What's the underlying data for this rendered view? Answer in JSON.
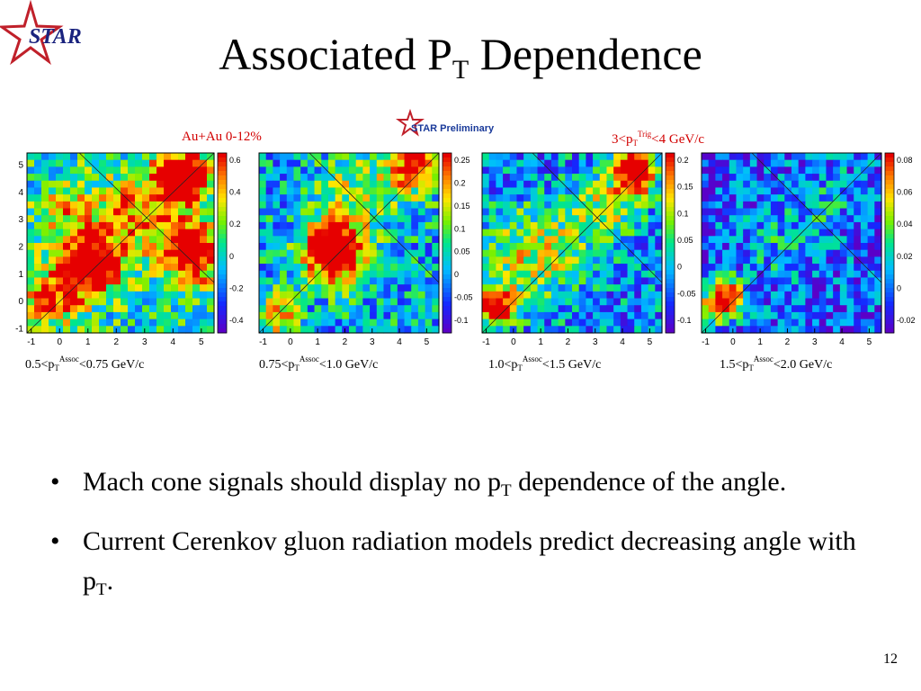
{
  "logo_text": "STAR",
  "title": {
    "main": "Associated P",
    "sub": "T",
    "rest": " Dependence"
  },
  "badge_text": "STAR Preliminary",
  "caption_left": "Au+Au 0-12%",
  "caption_right": {
    "a": "3<p",
    "sub": "T",
    "sup": "Trig",
    "b": "<4 GeV/c"
  },
  "chart_data": [
    {
      "type": "heatmap",
      "x_ticks": [
        "-1",
        "0",
        "1",
        "2",
        "3",
        "4",
        "5"
      ],
      "y_ticks": [
        "-1",
        "0",
        "1",
        "2",
        "3",
        "4",
        "5"
      ],
      "color_ticks": [
        "0.6",
        "0.4",
        "0.2",
        "0",
        "-0.2",
        "-0.4"
      ],
      "label": {
        "a": "0.5<p",
        "sub": "T",
        "sup": "Assoc",
        "b": "<0.75 GeV/c"
      }
    },
    {
      "type": "heatmap",
      "x_ticks": [
        "-1",
        "0",
        "1",
        "2",
        "3",
        "4",
        "5"
      ],
      "y_ticks": [],
      "color_ticks": [
        "0.25",
        "0.2",
        "0.15",
        "0.1",
        "0.05",
        "0",
        "-0.05",
        "-0.1"
      ],
      "label": {
        "a": "0.75<p",
        "sub": "T",
        "sup": "Assoc",
        "b": "<1.0 GeV/c"
      }
    },
    {
      "type": "heatmap",
      "x_ticks": [
        "-1",
        "0",
        "1",
        "2",
        "3",
        "4",
        "5"
      ],
      "y_ticks": [],
      "color_ticks": [
        "0.2",
        "0.15",
        "0.1",
        "0.05",
        "0",
        "-0.05",
        "-0.1"
      ],
      "label": {
        "a": "1.0<p",
        "sub": "T",
        "sup": "Assoc",
        "b": "<1.5 GeV/c"
      }
    },
    {
      "type": "heatmap",
      "x_ticks": [
        "-1",
        "0",
        "1",
        "2",
        "3",
        "4",
        "5"
      ],
      "y_ticks": [],
      "color_ticks": [
        "0.08",
        "0.06",
        "0.04",
        "0.02",
        "0",
        "-0.02"
      ],
      "label": {
        "a": "1.5<p",
        "sub": "T",
        "sup": "Assoc",
        "b": "<2.0 GeV/c"
      }
    }
  ],
  "bullets": [
    {
      "a": "Mach cone signals should display no p",
      "sub": "T",
      "b": " dependence of the angle."
    },
    {
      "a": "Current Cerenkov gluon radiation models predict decreasing angle with p",
      "sub": "T",
      "b": "."
    }
  ],
  "bullet_glyph": "•",
  "page_number": "12"
}
